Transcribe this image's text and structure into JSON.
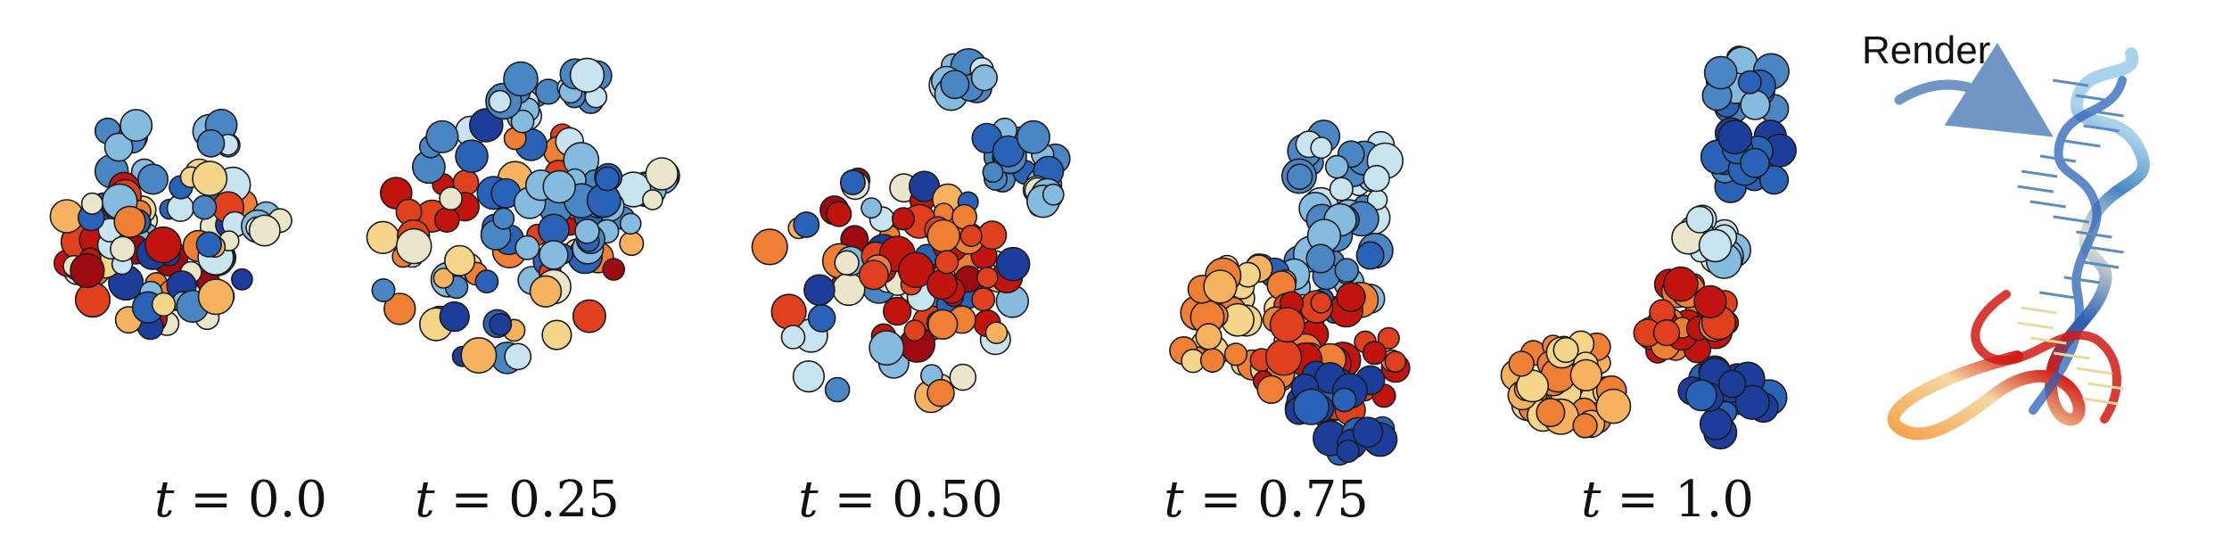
{
  "frames": [
    {
      "var": "t",
      "value": "0.0"
    },
    {
      "var": "t",
      "value": "0.25"
    },
    {
      "var": "t",
      "value": "0.50"
    },
    {
      "var": "t",
      "value": "0.75"
    },
    {
      "var": "t",
      "value": "1.0"
    }
  ],
  "render": {
    "label": "Render",
    "arrow_color": "#6f96c4"
  },
  "palette": [
    "#1d3d9a",
    "#2a62b8",
    "#4a86c4",
    "#86bbe0",
    "#c9e4f1",
    "#eae6cc",
    "#f4d58a",
    "#f6b25e",
    "#ef7f35",
    "#e0401d",
    "#c2140f",
    "#9e0a12"
  ]
}
